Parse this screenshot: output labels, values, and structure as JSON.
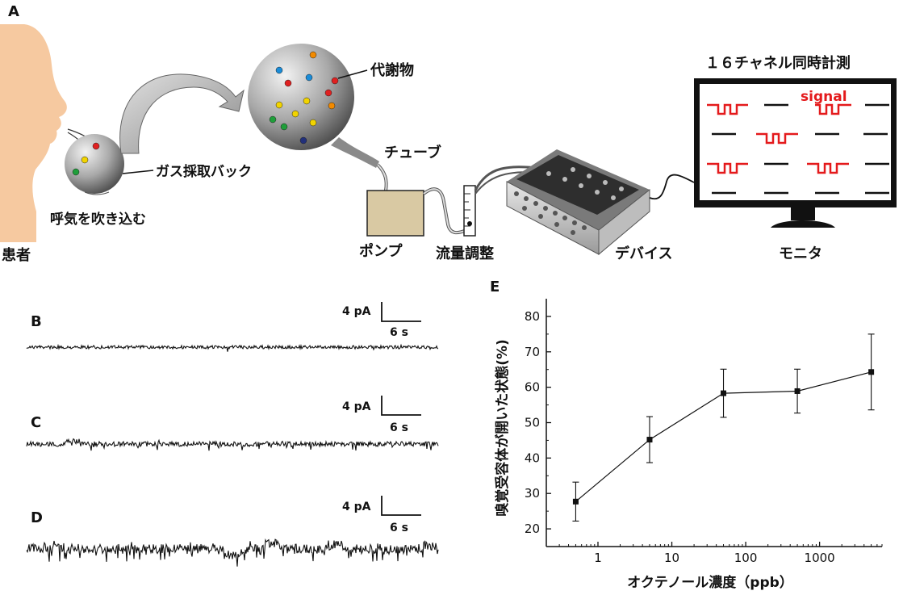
{
  "panel_labels": {
    "A": "A",
    "B": "B",
    "C": "C",
    "D": "D",
    "E": "E"
  },
  "schematic": {
    "patient": "患者",
    "exhale": "呼気を吹き込む",
    "gas_bag": "ガス採取バック",
    "metabolite": "代謝物",
    "tube": "チューブ",
    "pump": "ポンプ",
    "flow_control": "流量調整",
    "device": "デバイス",
    "monitor_title": "１６チャネル同時計測",
    "signal": "signal",
    "monitor": "モニタ"
  },
  "traces": [
    {
      "panel": "B",
      "scale_current": "4 pA",
      "scale_time": "6 s",
      "noise": "low"
    },
    {
      "panel": "C",
      "scale_current": "4 pA",
      "scale_time": "6 s",
      "noise": "medium"
    },
    {
      "panel": "D",
      "scale_current": "4 pA",
      "scale_time": "6 s",
      "noise": "high"
    }
  ],
  "colors": {
    "skin": "#f6c9a0",
    "signal_red": "#e41a1c",
    "pump_box": "#d9c9a3",
    "bag_gray": "#a9a9a9",
    "line": "#111111"
  },
  "chart_data": {
    "type": "line",
    "xscale": "log",
    "xlabel": "オクテノール濃度（ppb）",
    "ylabel": "嗅覚受容体が開いた状態(%)",
    "xlim": [
      0.2,
      7000
    ],
    "ylim": [
      15,
      85
    ],
    "x_ticks": [
      1,
      10,
      100,
      1000
    ],
    "x_tick_labels": [
      "1",
      "10",
      "100",
      "1000"
    ],
    "y_ticks": [
      20,
      30,
      40,
      50,
      60,
      70,
      80
    ],
    "y_tick_labels": [
      "20",
      "30",
      "40",
      "50",
      "60",
      "70",
      "80"
    ],
    "x": [
      0.5,
      5,
      50,
      500,
      5000
    ],
    "y": [
      27.7,
      45.2,
      58.3,
      58.9,
      64.3
    ],
    "error": [
      5.5,
      6.5,
      6.8,
      6.2,
      10.7
    ],
    "marker": "square",
    "grid": false
  }
}
